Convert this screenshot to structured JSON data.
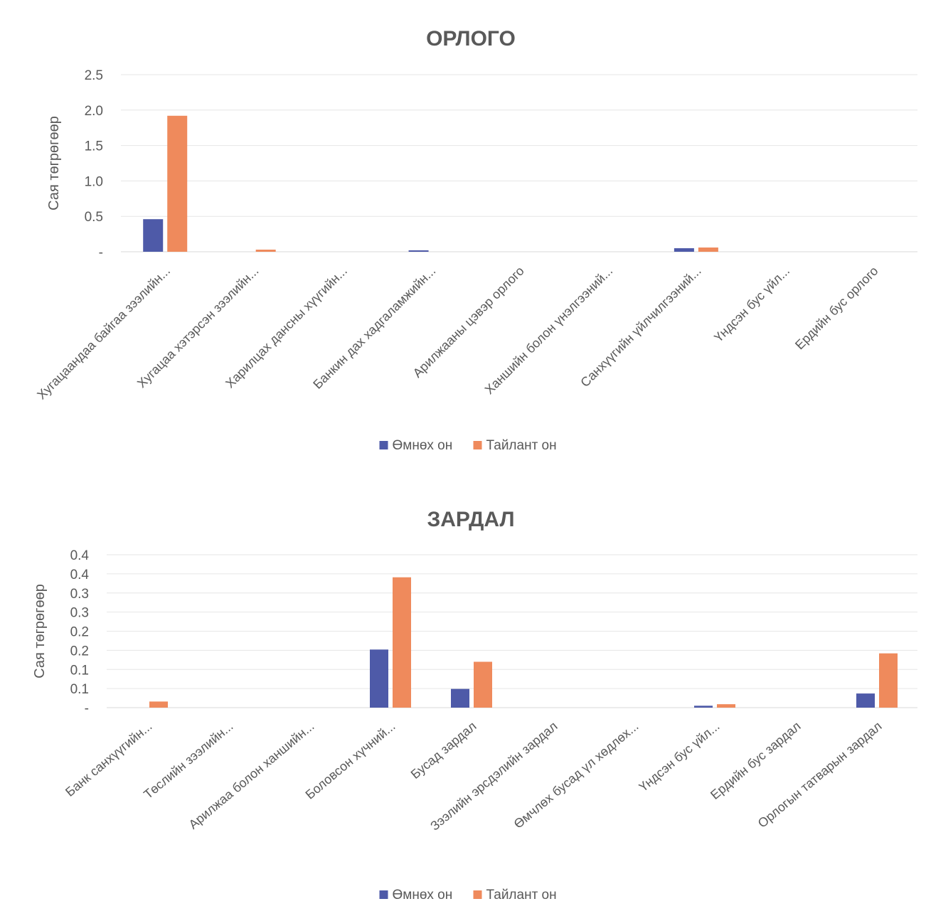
{
  "colors": {
    "prior": "#4e5aa8",
    "report": "#ef8a5c",
    "grid": "#e6e6e6",
    "text": "#595959"
  },
  "chart_data": [
    {
      "type": "bar",
      "title": "ОРЛОГО",
      "xlabel": "",
      "ylabel": "Сая төгрөгөөр",
      "ylim": [
        0,
        2.5
      ],
      "y_ticks": [
        0,
        0.5,
        1.0,
        1.5,
        2.0,
        2.5
      ],
      "y_tick_labels": [
        "-",
        "0.5",
        "1.0",
        "1.5",
        "2.0",
        "2.5"
      ],
      "grid": true,
      "legend_position": "bottom",
      "categories": [
        "Хугацаандаа байгаа зээлийн...",
        "Хугацаа хэтэрсэн зээлийн...",
        "Харилцах дансны хүүгийн...",
        "Банкин дах хадгаламжийн...",
        "Арилжааны цэвэр орлого",
        "Ханшийн болон үнэлгээний...",
        "Санхүүгийн үйлчилгээний...",
        "Үндсэн бус үйл...",
        "Ердийн бус орлого"
      ],
      "series": [
        {
          "name": "Өмнөх он",
          "values": [
            0.46,
            0,
            0,
            0.02,
            0,
            0,
            0.05,
            0,
            0
          ]
        },
        {
          "name": "Тайлант он",
          "values": [
            1.92,
            0.03,
            0,
            0,
            0,
            0,
            0.06,
            0,
            0
          ]
        }
      ]
    },
    {
      "type": "bar",
      "title": "ЗАРДАЛ",
      "xlabel": "",
      "ylabel": "Сая төгрөгөөр",
      "ylim": [
        0,
        0.4
      ],
      "y_ticks": [
        0,
        0.05,
        0.1,
        0.15,
        0.2,
        0.25,
        0.3,
        0.35,
        0.4
      ],
      "y_tick_labels": [
        "-",
        "0.1",
        "0.1",
        "0.2",
        "0.2",
        "0.3",
        "0.3",
        "0.4",
        "0.4"
      ],
      "grid": true,
      "legend_position": "bottom",
      "categories": [
        "Банк санхүүгийн...",
        "Төслийн зээлийн...",
        "Арилжаа болон ханшийн...",
        "Боловсон хүчний...",
        "Бусад зардал",
        "Зээлийн эрсдэлийн зардал",
        "Өмчлөх бусад үл хөдлөх...",
        "Үндсэн бус үйл...",
        "Ердийн бус зардал",
        "Орлогын татварын зардал"
      ],
      "series": [
        {
          "name": "Өмнөх он",
          "values": [
            0,
            0,
            0,
            0.152,
            0.049,
            0,
            0,
            0.005,
            0,
            0.037
          ]
        },
        {
          "name": "Тайлант он",
          "values": [
            0.016,
            0,
            0,
            0.341,
            0.12,
            0,
            0,
            0.009,
            0,
            0.142
          ]
        }
      ]
    }
  ]
}
